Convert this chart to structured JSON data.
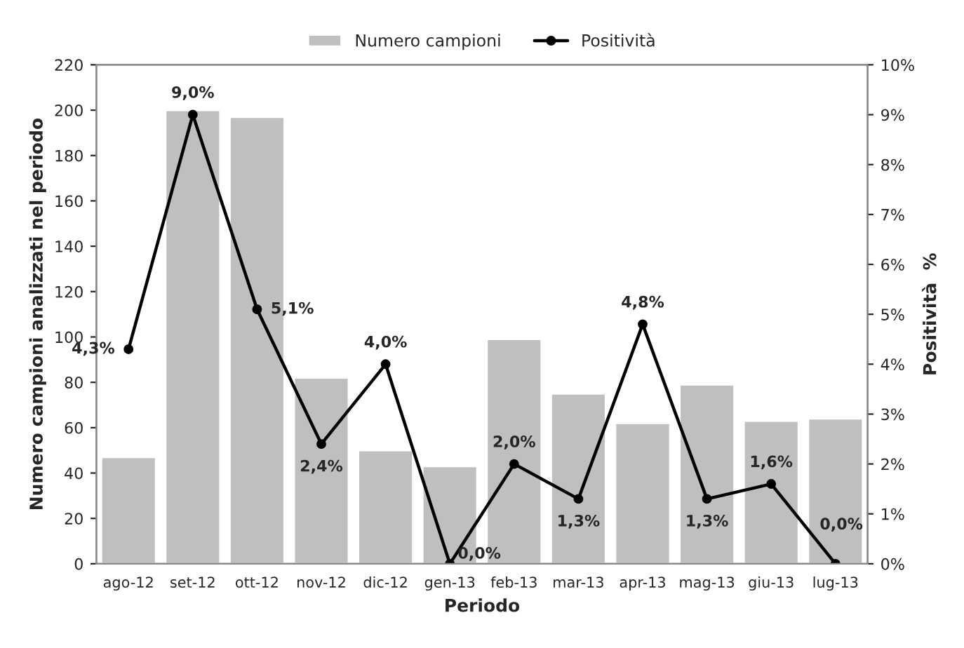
{
  "chart_data": {
    "type": "bar",
    "categories": [
      "ago-12",
      "set-12",
      "ott-12",
      "nov-12",
      "dic-12",
      "gen-13",
      "feb-13",
      "mar-13",
      "apr-13",
      "mag-13",
      "giu-13",
      "lug-13"
    ],
    "xlabel": "Periodo",
    "ylabel": "Numero campioni analizzati nel periodo",
    "y2label": "Positività  %",
    "ylim": [
      0,
      220
    ],
    "yticks": [
      0,
      20,
      40,
      60,
      80,
      100,
      120,
      140,
      160,
      180,
      200,
      220
    ],
    "y2lim": [
      0,
      10
    ],
    "y2ticks": [
      {
        "value": 0,
        "label": "0%"
      },
      {
        "value": 1,
        "label": "1%"
      },
      {
        "value": 2,
        "label": "2%"
      },
      {
        "value": 3,
        "label": "3%"
      },
      {
        "value": 4,
        "label": "4%"
      },
      {
        "value": 5,
        "label": "5%"
      },
      {
        "value": 6,
        "label": "6%"
      },
      {
        "value": 7,
        "label": "7%"
      },
      {
        "value": 8,
        "label": "8%"
      },
      {
        "value": 9,
        "label": "9%"
      },
      {
        "value": 10,
        "label": "10%"
      }
    ],
    "legend": "top",
    "grid": false,
    "series": [
      {
        "name": "Numero campioni",
        "type": "bar",
        "color": "#bfbfbf",
        "values": [
          47,
          200,
          197,
          82,
          50,
          43,
          99,
          75,
          62,
          79,
          63,
          64
        ]
      },
      {
        "name": "Positività",
        "type": "line",
        "axis": "y2",
        "color": "#000000",
        "marker": "circle",
        "line_style": "solid",
        "values": [
          4.3,
          9.0,
          5.1,
          2.4,
          4.0,
          0.0,
          2.0,
          1.3,
          4.8,
          1.3,
          1.6,
          0.0
        ],
        "value_labels": [
          "4,3%",
          "9,0%",
          "5,1%",
          "2,4%",
          "4,0%",
          "0,0%",
          "2,0%",
          "1,3%",
          "4,8%",
          "1,3%",
          "1,6%",
          "0,0%"
        ]
      }
    ]
  }
}
